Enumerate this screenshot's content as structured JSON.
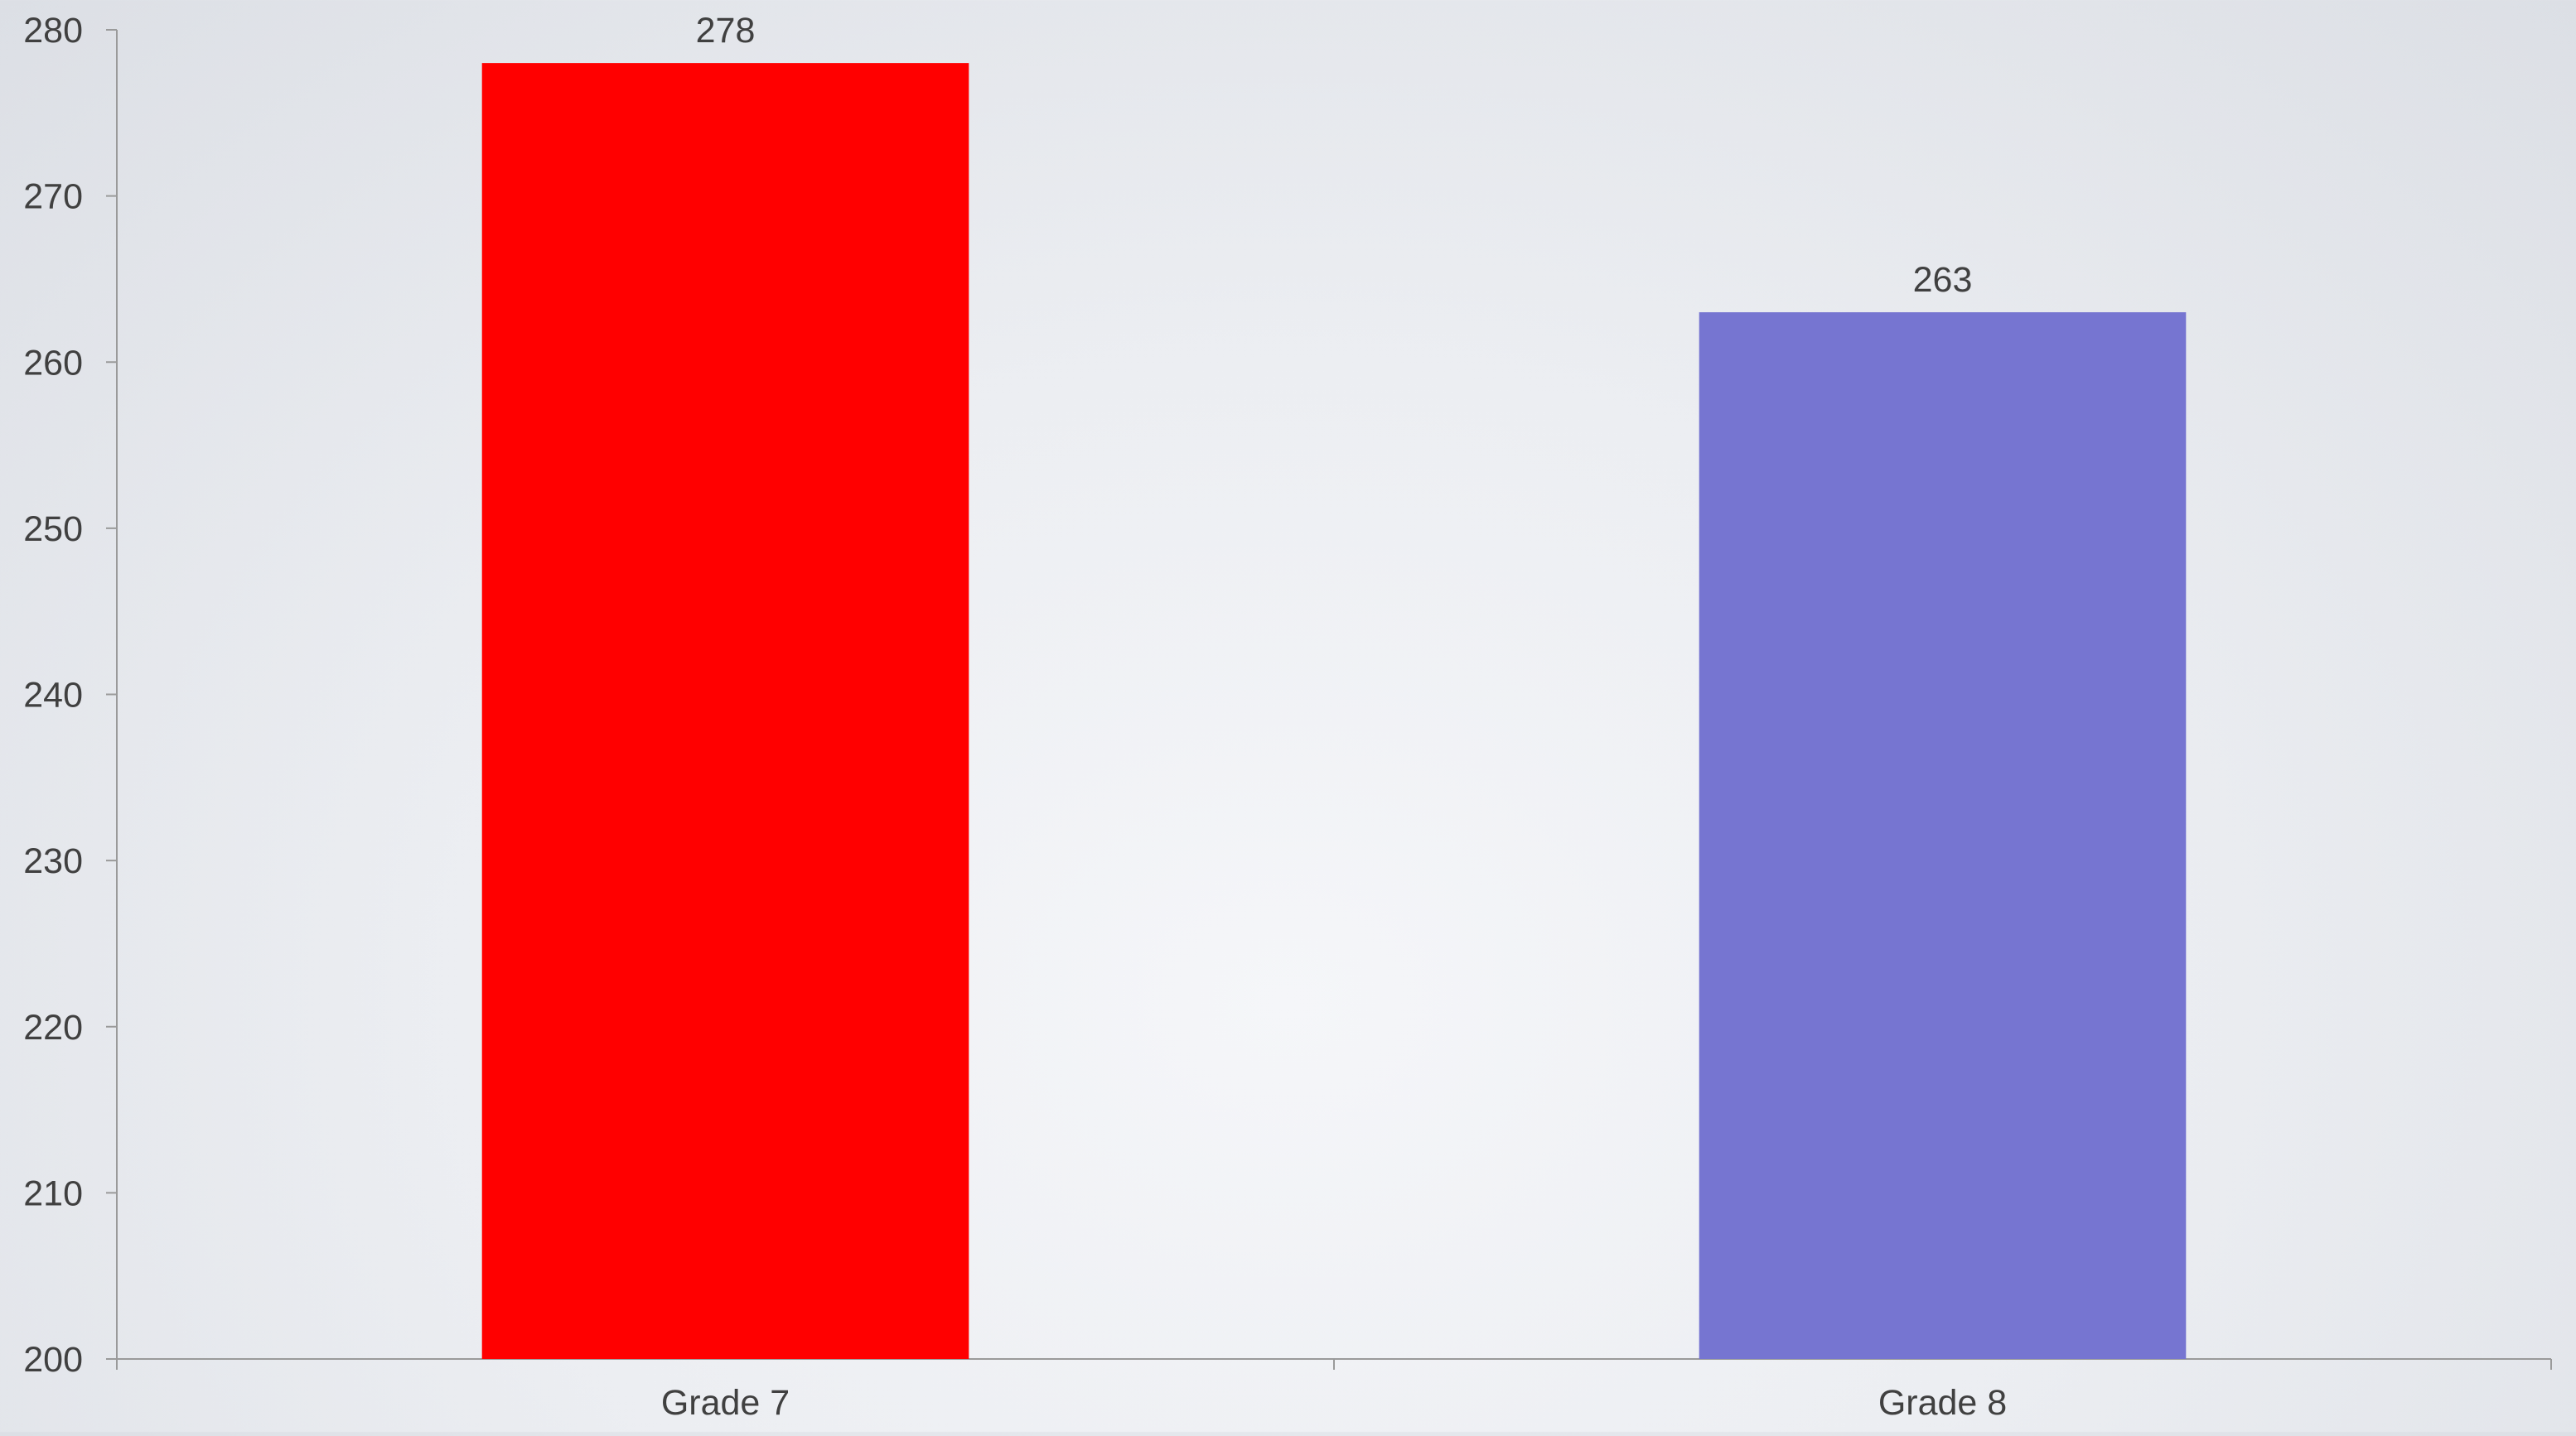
{
  "chart_data": {
    "type": "bar",
    "categories": [
      "Grade 7",
      "Grade 8"
    ],
    "values": [
      278,
      263
    ],
    "data_labels": [
      "278",
      "263"
    ],
    "bar_colors": [
      "#ff0000",
      "#7675d1"
    ],
    "title": "",
    "xlabel": "",
    "ylabel": "",
    "ylim": [
      200,
      280
    ],
    "yticks": [
      200,
      210,
      220,
      230,
      240,
      250,
      260,
      270,
      280
    ],
    "grid": false,
    "legend": "none"
  },
  "colors": {
    "axis": "#9a9a9a",
    "text": "#404040",
    "background": "#eceef2"
  }
}
